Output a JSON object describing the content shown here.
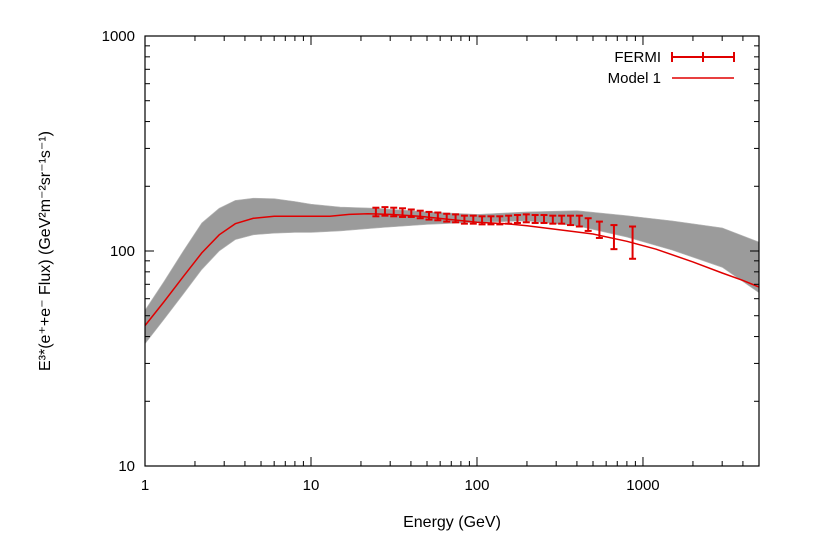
{
  "chart_data": {
    "type": "line",
    "xlabel": "Energy (GeV)",
    "ylabel": "E³*(e⁺+e⁻ Flux) (GeV²m⁻²sr⁻¹s⁻¹)",
    "xscale": "log",
    "yscale": "log",
    "xlim": [
      1,
      5000
    ],
    "ylim": [
      10,
      1000
    ],
    "xticks": [
      1,
      10,
      100,
      1000
    ],
    "xtick_labels": [
      "1",
      "10",
      "100",
      "1000"
    ],
    "yticks": [
      10,
      100,
      1000
    ],
    "ytick_labels": [
      "10",
      "100",
      "1000"
    ],
    "grid": false,
    "legend_position": "top-right",
    "legend": [
      {
        "label": "FERMI",
        "style": "errorbar"
      },
      {
        "label": "Model 1",
        "style": "line"
      }
    ],
    "colors": {
      "data": "#e00000",
      "band": "#9b9b9b",
      "axis": "#000000"
    },
    "series": [
      {
        "name": "FERMI",
        "kind": "errorbar",
        "x": [
          24.6,
          27.9,
          31.5,
          35.6,
          40.2,
          45.5,
          51.4,
          58.1,
          65.7,
          74.3,
          84.0,
          95.0,
          107.3,
          121.4,
          137.2,
          155.1,
          175.3,
          198.2,
          224.1,
          253.3,
          286.3,
          323.7,
          365.9,
          413.6,
          467.6,
          546.4,
          668.5,
          865.6
        ],
        "y": [
          152,
          153,
          152,
          151,
          150,
          148,
          146,
          145,
          143,
          142,
          140,
          140,
          139,
          139,
          139,
          140,
          141,
          142,
          141,
          141,
          140,
          140,
          139,
          138,
          133,
          126,
          117,
          111
        ],
        "err": [
          7,
          7,
          7,
          7,
          6,
          6,
          6,
          6,
          6,
          6,
          6,
          6,
          6,
          6,
          6,
          6,
          6,
          6,
          6,
          6,
          6,
          6,
          7,
          8,
          9,
          11,
          15,
          19
        ]
      },
      {
        "name": "Model 1",
        "kind": "line",
        "x": [
          1,
          1.3,
          1.7,
          2.2,
          2.8,
          3.5,
          4.5,
          6,
          8,
          10,
          13,
          17,
          22,
          30,
          45,
          70,
          100,
          150,
          200,
          300,
          500,
          800,
          1200,
          2000,
          3000,
          4000,
          5000
        ],
        "y": [
          45,
          58,
          76,
          98,
          119,
          134,
          142,
          145,
          145,
          145,
          145,
          148,
          149,
          148,
          145,
          140,
          136,
          134,
          131,
          126,
          120,
          111,
          102,
          89,
          79,
          73,
          68
        ]
      }
    ],
    "model_band": {
      "x": [
        1,
        1.3,
        1.7,
        2.2,
        2.8,
        3.5,
        4.5,
        6,
        8,
        10,
        15,
        25,
        50,
        100,
        200,
        400,
        800,
        1500,
        3000,
        5000
      ],
      "lower": [
        37,
        48,
        63,
        82,
        100,
        113,
        119,
        121,
        122,
        122,
        124,
        128,
        133,
        136,
        138,
        131,
        116,
        101,
        84,
        64
      ],
      "upper": [
        53,
        72,
        100,
        135,
        158,
        172,
        176,
        175,
        170,
        165,
        160,
        158,
        152,
        148,
        152,
        154,
        146,
        138,
        128,
        110
      ]
    }
  }
}
